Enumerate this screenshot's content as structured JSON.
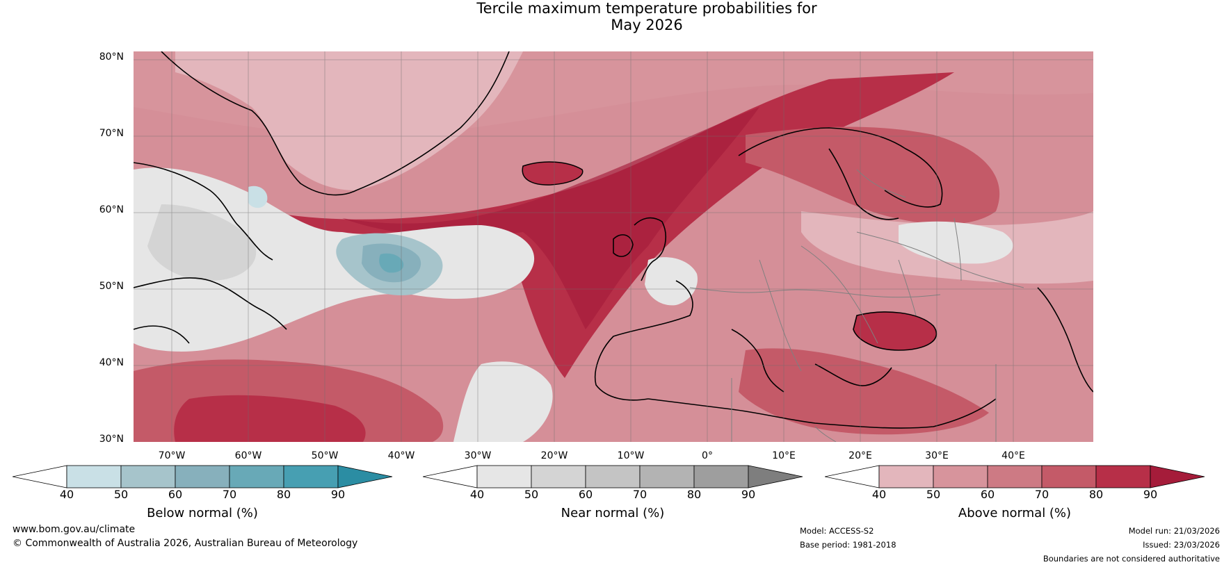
{
  "title_line1": "Tercile maximum temperature probabilities for",
  "title_line2": "May 2026",
  "map": {
    "lat_labels": [
      "80°N",
      "70°N",
      "60°N",
      "50°N",
      "40°N",
      "30°N"
    ],
    "lon_labels": [
      "70°W",
      "60°W",
      "50°W",
      "40°W",
      "30°W",
      "20°W",
      "10°W",
      "0°",
      "10°E",
      "20°E",
      "30°E",
      "40°E"
    ]
  },
  "colorbars": {
    "below": {
      "title": "Below normal (%)",
      "ticks": [
        "40",
        "50",
        "60",
        "70",
        "80",
        "90"
      ],
      "colors": [
        "#ffffff",
        "#c9e0e6",
        "#a6c4cb",
        "#87b0bc",
        "#68a9b7",
        "#479fb2",
        "#2b8da3"
      ]
    },
    "near": {
      "title": "Near normal (%)",
      "ticks": [
        "40",
        "50",
        "60",
        "70",
        "80",
        "90"
      ],
      "colors": [
        "#ffffff",
        "#e6e6e6",
        "#d4d4d4",
        "#c4c4c4",
        "#b3b3b3",
        "#9e9e9e",
        "#7e7e7e"
      ]
    },
    "above": {
      "title": "Above normal (%)",
      "ticks": [
        "40",
        "50",
        "60",
        "70",
        "80",
        "90"
      ],
      "colors": [
        "#ffffff",
        "#e3b6bc",
        "#d7949c",
        "#cd7a84",
        "#c45a68",
        "#b72f48",
        "#a51c3a"
      ]
    }
  },
  "footer": {
    "website": "www.bom.gov.au/climate",
    "copyright": "© Commonwealth of Australia 2026, Australian Bureau of Meteorology",
    "model": "Model: ACCESS-S2",
    "base_period": "Base period: 1981-2018",
    "model_run": "Model run: 21/03/2026",
    "issued": "Issued: 23/03/2026",
    "disclaimer": "Boundaries are not considered authoritative"
  }
}
